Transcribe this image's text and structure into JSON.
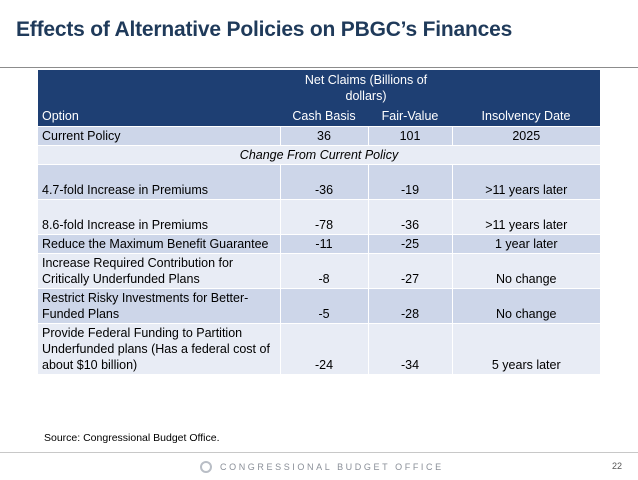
{
  "title": "Effects of Alternative Policies on PBGC’s Finances",
  "table": {
    "header": {
      "net_claims": "Net Claims (Billions of dollars)",
      "insolvency": "Insolvency Date",
      "option": "Option",
      "cash_basis": "Cash Basis",
      "fair_value": "Fair-Value"
    },
    "current": {
      "option": "Current Policy",
      "cash": "36",
      "fair": "101",
      "insolvency": "2025"
    },
    "subheader": "Change From Current Policy",
    "rows": [
      {
        "option": "4.7-fold Increase in Premiums",
        "cash": "-36",
        "fair": "-19",
        "insolvency": ">11 years later"
      },
      {
        "option": "8.6-fold Increase in Premiums",
        "cash": "-78",
        "fair": "-36",
        "insolvency": ">11 years later"
      },
      {
        "option": "Reduce the Maximum Benefit Guarantee",
        "cash": "-11",
        "fair": "-25",
        "insolvency": "1 year later"
      },
      {
        "option": "Increase Required Contribution for Critically Underfunded Plans",
        "cash": "-8",
        "fair": "-27",
        "insolvency": "No change"
      },
      {
        "option": "Restrict Risky Investments for Better-Funded Plans",
        "cash": "-5",
        "fair": "-28",
        "insolvency": "No change"
      },
      {
        "option": "Provide Federal Funding to Partition Underfunded plans (Has a federal cost of about $10 billion)",
        "cash": "-24",
        "fair": "-34",
        "insolvency": "5 years later"
      }
    ]
  },
  "source": "Source: Congressional Budget Office.",
  "footer": {
    "brand": "CONGRESSIONAL BUDGET OFFICE",
    "page": "22"
  }
}
